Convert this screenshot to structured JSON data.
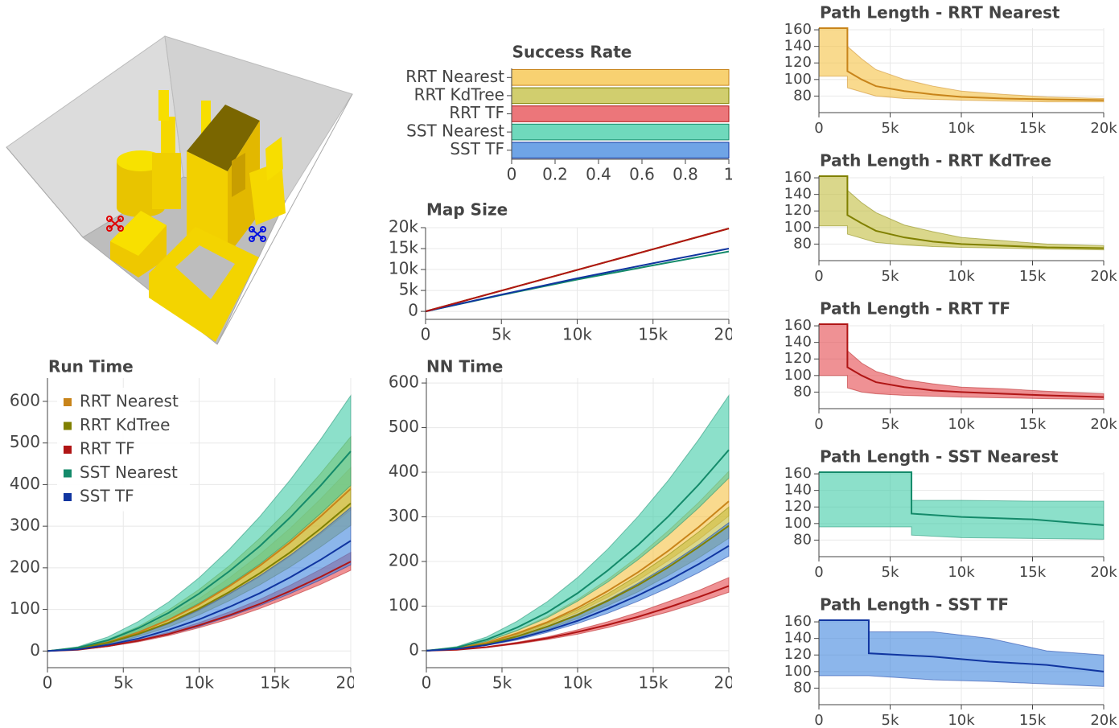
{
  "chart_data": [
    {
      "type": "bar",
      "orientation": "horizontal",
      "title": "Success Rate",
      "categories": [
        "RRT Nearest",
        "RRT KdTree",
        "RRT TF",
        "SST Nearest",
        "SST TF"
      ],
      "values": [
        1,
        1,
        1,
        1,
        1
      ],
      "colors": [
        "#f5c242",
        "#c2bd3e",
        "#e5484d",
        "#3fcca6",
        "#3f86dd"
      ],
      "edge_colors": [
        "#c8841a",
        "#808000",
        "#b01515",
        "#148a6a",
        "#1035a0"
      ],
      "xlim": [
        0,
        1
      ],
      "xticks": [
        0,
        0.2,
        0.4,
        0.6,
        0.8,
        1
      ],
      "grid": false
    },
    {
      "type": "line",
      "title": "Map Size",
      "x": [
        0,
        5000,
        10000,
        15000,
        20000
      ],
      "series": [
        {
          "color": "#c8841a",
          "values": [
            0,
            4950,
            9900,
            14850,
            19800
          ]
        },
        {
          "color": "#808000",
          "values": [
            0,
            4950,
            9900,
            14850,
            19800
          ]
        },
        {
          "color": "#148a6a",
          "values": [
            0,
            3900,
            7600,
            11000,
            14300
          ]
        },
        {
          "color": "#1035a0",
          "values": [
            0,
            4000,
            7900,
            11500,
            15000
          ]
        },
        {
          "color": "#b01515",
          "values": [
            0,
            4950,
            9900,
            14850,
            19800
          ]
        }
      ],
      "xlim": [
        0,
        20000
      ],
      "xticks": [
        0,
        {
          "value": 5000,
          "label": "5k"
        },
        {
          "value": 10000,
          "label": "10k"
        },
        {
          "value": 15000,
          "label": "15k"
        },
        {
          "value": 20000,
          "label": "20k"
        }
      ],
      "ylim": [
        -1900,
        20000
      ],
      "yticks": [
        0,
        {
          "value": 5000,
          "label": "5k"
        },
        {
          "value": 10000,
          "label": "10k"
        },
        {
          "value": 15000,
          "label": "15k"
        },
        {
          "value": 20000,
          "label": "20k"
        }
      ],
      "grid": true
    },
    {
      "type": "line",
      "title": "Run Time",
      "legend": "top_left",
      "x": [
        0,
        2000,
        4000,
        6000,
        8000,
        10000,
        12000,
        14000,
        16000,
        18000,
        20000
      ],
      "series": [
        {
          "name": "RRT Nearest",
          "color": "#c8841a",
          "band_color": "#f5c242",
          "values": [
            0,
            6,
            21,
            45,
            75,
            112,
            156,
            205,
            261,
            323,
            390
          ],
          "lower": [
            0,
            5,
            19,
            39,
            65,
            97,
            136,
            178,
            227,
            281,
            339
          ],
          "upper": [
            0,
            7,
            24,
            51,
            85,
            126,
            176,
            232,
            295,
            365,
            441
          ]
        },
        {
          "name": "RRT KdTree",
          "color": "#808000",
          "band_color": "#c2bd3e",
          "values": [
            0,
            6,
            20,
            41,
            68,
            102,
            142,
            187,
            237,
            294,
            355
          ],
          "lower": [
            0,
            5,
            17,
            35,
            58,
            87,
            121,
            159,
            202,
            250,
            302
          ],
          "upper": [
            0,
            8,
            28,
            59,
            99,
            148,
            205,
            271,
            344,
            426,
            515
          ]
        },
        {
          "name": "RRT TF",
          "color": "#b01515",
          "band_color": "#e5484d",
          "values": [
            0,
            3,
            12,
            25,
            41,
            62,
            86,
            113,
            144,
            178,
            215
          ],
          "lower": [
            0,
            3,
            11,
            22,
            37,
            56,
            77,
            102,
            130,
            160,
            194
          ],
          "upper": [
            0,
            4,
            13,
            27,
            45,
            68,
            94,
            124,
            158,
            196,
            237
          ]
        },
        {
          "name": "SST Nearest",
          "color": "#148a6a",
          "band_color": "#3fcca6",
          "values": [
            0,
            8,
            26,
            55,
            92,
            138,
            192,
            252,
            321,
            397,
            480
          ],
          "lower": [
            0,
            6,
            22,
            46,
            76,
            115,
            159,
            209,
            266,
            330,
            398
          ],
          "upper": [
            0,
            10,
            34,
            71,
            118,
            176,
            245,
            323,
            411,
            508,
            614
          ]
        },
        {
          "name": "SST TF",
          "color": "#1035a0",
          "band_color": "#3f86dd",
          "values": [
            0,
            4,
            15,
            30,
            51,
            76,
            106,
            139,
            177,
            219,
            265
          ],
          "lower": [
            0,
            3,
            11,
            24,
            40,
            59,
            83,
            109,
            138,
            171,
            207
          ],
          "upper": [
            0,
            6,
            19,
            40,
            66,
            99,
            138,
            181,
            230,
            285,
            345
          ]
        }
      ],
      "xlim": [
        0,
        20000
      ],
      "xticks": [
        0,
        {
          "value": 5000,
          "label": "5k"
        },
        {
          "value": 10000,
          "label": "10k"
        },
        {
          "value": 15000,
          "label": "15k"
        },
        {
          "value": 20000,
          "label": "20k"
        }
      ],
      "ylim": [
        -40,
        656
      ],
      "yticks": [
        0,
        100,
        200,
        300,
        400,
        500,
        600
      ],
      "grid": true
    },
    {
      "type": "line",
      "title": "NN Time",
      "x": [
        0,
        2000,
        4000,
        6000,
        8000,
        10000,
        12000,
        14000,
        16000,
        18000,
        20000
      ],
      "series": [
        {
          "color": "#c8841a",
          "band_color": "#f5c242",
          "values": [
            0,
            5,
            18,
            39,
            64,
            96,
            134,
            176,
            224,
            277,
            335
          ],
          "lower": [
            0,
            5,
            17,
            35,
            58,
            86,
            120,
            158,
            202,
            249,
            302
          ],
          "upper": [
            0,
            6,
            22,
            46,
            77,
            115,
            160,
            211,
            269,
            332,
            402
          ]
        },
        {
          "color": "#808000",
          "band_color": "#c2bd3e",
          "values": [
            0,
            4,
            15,
            32,
            54,
            80,
            112,
            147,
            187,
            232,
            280
          ],
          "lower": [
            0,
            4,
            14,
            29,
            48,
            72,
            101,
            132,
            169,
            208,
            252
          ],
          "upper": [
            0,
            5,
            18,
            37,
            62,
            92,
            128,
            169,
            215,
            266,
            322
          ]
        },
        {
          "color": "#b01515",
          "band_color": "#e5484d",
          "values": [
            0,
            2,
            8,
            17,
            28,
            42,
            58,
            76,
            97,
            120,
            145
          ],
          "lower": [
            0,
            2,
            7,
            15,
            25,
            37,
            52,
            69,
            87,
            108,
            131
          ],
          "upper": [
            0,
            3,
            9,
            19,
            31,
            47,
            65,
            86,
            110,
            135,
            164
          ]
        },
        {
          "color": "#148a6a",
          "band_color": "#3fcca6",
          "values": [
            0,
            7,
            25,
            52,
            86,
            129,
            180,
            237,
            301,
            372,
            450
          ],
          "lower": [
            0,
            6,
            21,
            45,
            74,
            111,
            154,
            204,
            259,
            320,
            387
          ],
          "upper": [
            0,
            9,
            31,
            66,
            110,
            164,
            228,
            301,
            382,
            473,
            572
          ]
        },
        {
          "color": "#1035a0",
          "band_color": "#3f86dd",
          "values": [
            0,
            4,
            13,
            27,
            45,
            67,
            94,
            124,
            157,
            194,
            235
          ],
          "lower": [
            0,
            3,
            12,
            24,
            41,
            61,
            84,
            111,
            141,
            175,
            212
          ],
          "upper": [
            0,
            5,
            16,
            33,
            55,
            82,
            114,
            151,
            192,
            237,
            287
          ]
        }
      ],
      "xlim": [
        0,
        20000
      ],
      "xticks": [
        0,
        {
          "value": 5000,
          "label": "5k"
        },
        {
          "value": 10000,
          "label": "10k"
        },
        {
          "value": 15000,
          "label": "15k"
        },
        {
          "value": 20000,
          "label": "20k"
        }
      ],
      "ylim": [
        -38,
        611
      ],
      "yticks": [
        0,
        100,
        200,
        300,
        400,
        500,
        600
      ],
      "grid": true
    },
    {
      "type": "line",
      "title": "Path Length - RRT Nearest",
      "x": [
        0,
        2000,
        2000,
        3000,
        4000,
        6000,
        8000,
        10000,
        13000,
        16000,
        20000
      ],
      "series": [
        {
          "color": "#c8841a",
          "band_color": "#f5c242",
          "values": [
            162,
            162,
            110,
            100,
            92,
            86,
            82,
            79,
            77,
            76,
            75
          ],
          "lower": [
            104,
            104,
            90,
            85,
            80,
            77,
            76,
            75,
            74,
            73,
            73
          ],
          "upper": [
            162,
            162,
            140,
            125,
            112,
            100,
            92,
            86,
            82,
            79,
            77
          ]
        }
      ],
      "xlim": [
        0,
        20000
      ],
      "xticks": [
        0,
        {
          "value": 5000,
          "label": "5k"
        },
        {
          "value": 10000,
          "label": "10k"
        },
        {
          "value": 15000,
          "label": "15k"
        },
        {
          "value": 20000,
          "label": "20k"
        }
      ],
      "ylim": [
        60,
        162
      ],
      "yticks": [
        80,
        100,
        120,
        140,
        160
      ],
      "grid": true
    },
    {
      "type": "line",
      "title": "Path Length - RRT KdTree",
      "x": [
        0,
        2000,
        2000,
        3000,
        4000,
        6000,
        8000,
        10000,
        13000,
        16000,
        20000
      ],
      "series": [
        {
          "color": "#808000",
          "band_color": "#c2bd3e",
          "values": [
            162,
            162,
            115,
            105,
            96,
            88,
            83,
            80,
            78,
            76,
            75
          ],
          "lower": [
            102,
            102,
            92,
            87,
            82,
            79,
            77,
            76,
            75,
            74,
            73
          ],
          "upper": [
            162,
            162,
            145,
            130,
            118,
            103,
            95,
            88,
            84,
            80,
            78
          ]
        }
      ],
      "xlim": [
        0,
        20000
      ],
      "xticks": [
        0,
        {
          "value": 5000,
          "label": "5k"
        },
        {
          "value": 10000,
          "label": "10k"
        },
        {
          "value": 15000,
          "label": "15k"
        },
        {
          "value": 20000,
          "label": "20k"
        }
      ],
      "ylim": [
        60,
        162
      ],
      "yticks": [
        80,
        100,
        120,
        140,
        160
      ],
      "grid": true
    },
    {
      "type": "line",
      "title": "Path Length - RRT TF",
      "x": [
        0,
        2000,
        2000,
        3000,
        4000,
        6000,
        8000,
        10000,
        13000,
        16000,
        20000
      ],
      "series": [
        {
          "color": "#b01515",
          "band_color": "#e5484d",
          "values": [
            162,
            162,
            110,
            100,
            92,
            86,
            82,
            80,
            78,
            76,
            74
          ],
          "lower": [
            100,
            100,
            85,
            80,
            78,
            76,
            75,
            74,
            73,
            72,
            71
          ],
          "upper": [
            162,
            162,
            130,
            115,
            105,
            95,
            90,
            86,
            84,
            81,
            78
          ]
        }
      ],
      "xlim": [
        0,
        20000
      ],
      "xticks": [
        0,
        {
          "value": 5000,
          "label": "5k"
        },
        {
          "value": 10000,
          "label": "10k"
        },
        {
          "value": 15000,
          "label": "15k"
        },
        {
          "value": 20000,
          "label": "20k"
        }
      ],
      "ylim": [
        60,
        162
      ],
      "yticks": [
        80,
        100,
        120,
        140,
        160
      ],
      "grid": true
    },
    {
      "type": "line",
      "title": "Path Length - SST Nearest",
      "x": [
        0,
        6500,
        6500,
        10000,
        15000,
        20000
      ],
      "series": [
        {
          "color": "#148a6a",
          "band_color": "#3fcca6",
          "values": [
            162,
            162,
            112,
            108,
            105,
            98
          ],
          "lower": [
            96,
            96,
            86,
            83,
            82,
            81
          ],
          "upper": [
            162,
            162,
            128,
            128,
            127,
            127
          ]
        }
      ],
      "xlim": [
        0,
        20000
      ],
      "xticks": [
        0,
        {
          "value": 5000,
          "label": "5k"
        },
        {
          "value": 10000,
          "label": "10k"
        },
        {
          "value": 15000,
          "label": "15k"
        },
        {
          "value": 20000,
          "label": "20k"
        }
      ],
      "ylim": [
        60,
        162
      ],
      "yticks": [
        80,
        100,
        120,
        140,
        160
      ],
      "grid": true
    },
    {
      "type": "line",
      "title": "Path Length - SST TF",
      "x": [
        0,
        3500,
        3500,
        8000,
        12000,
        16000,
        20000
      ],
      "series": [
        {
          "color": "#1035a0",
          "band_color": "#3f86dd",
          "values": [
            162,
            162,
            122,
            118,
            112,
            108,
            100
          ],
          "lower": [
            95,
            95,
            95,
            90,
            88,
            85,
            82
          ],
          "upper": [
            162,
            162,
            148,
            148,
            140,
            125,
            120
          ]
        }
      ],
      "xlim": [
        0,
        20000
      ],
      "xticks": [
        0,
        {
          "value": 5000,
          "label": "5k"
        },
        {
          "value": 10000,
          "label": "10k"
        },
        {
          "value": 15000,
          "label": "15k"
        },
        {
          "value": 20000,
          "label": "20k"
        }
      ],
      "ylim": [
        60,
        162
      ],
      "yticks": [
        80,
        100,
        120,
        140,
        160
      ],
      "grid": true
    }
  ]
}
